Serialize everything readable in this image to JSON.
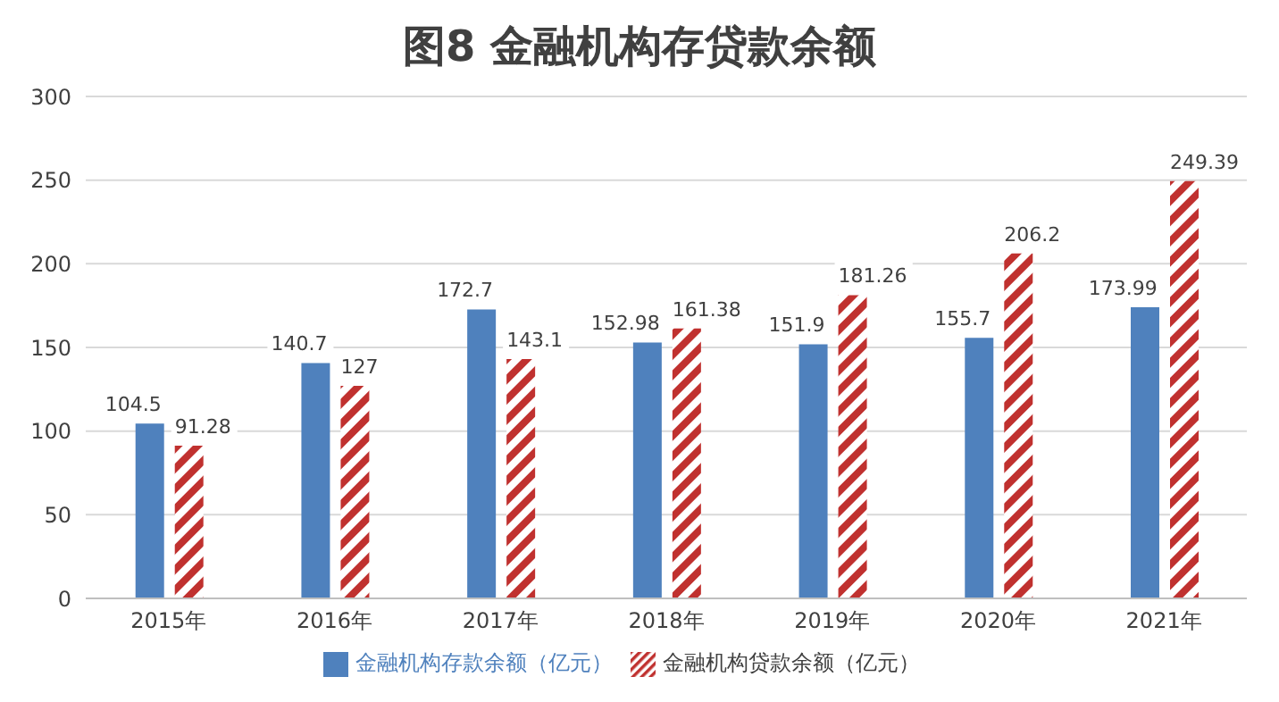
{
  "chart_data": {
    "type": "bar",
    "title": "图8  金融机构存贷款余额",
    "categories": [
      "2015年",
      "2016年",
      "2017年",
      "2018年",
      "2019年",
      "2020年",
      "2021年"
    ],
    "series": [
      {
        "name": "金融机构存款余额（亿元）",
        "color": "#4f81bd",
        "values": [
          104.5,
          140.7,
          172.7,
          152.98,
          151.9,
          155.7,
          173.99
        ]
      },
      {
        "name": "金融机构贷款余额（亿元）",
        "color": "#c0312f",
        "values": [
          91.28,
          127,
          143.1,
          161.38,
          181.26,
          206.2,
          249.39
        ]
      }
    ],
    "ylim": [
      0,
      300
    ],
    "yticks": [
      0,
      50,
      100,
      150,
      200,
      250,
      300
    ],
    "grid": "y",
    "legend": "bottom",
    "data_labels": true
  }
}
